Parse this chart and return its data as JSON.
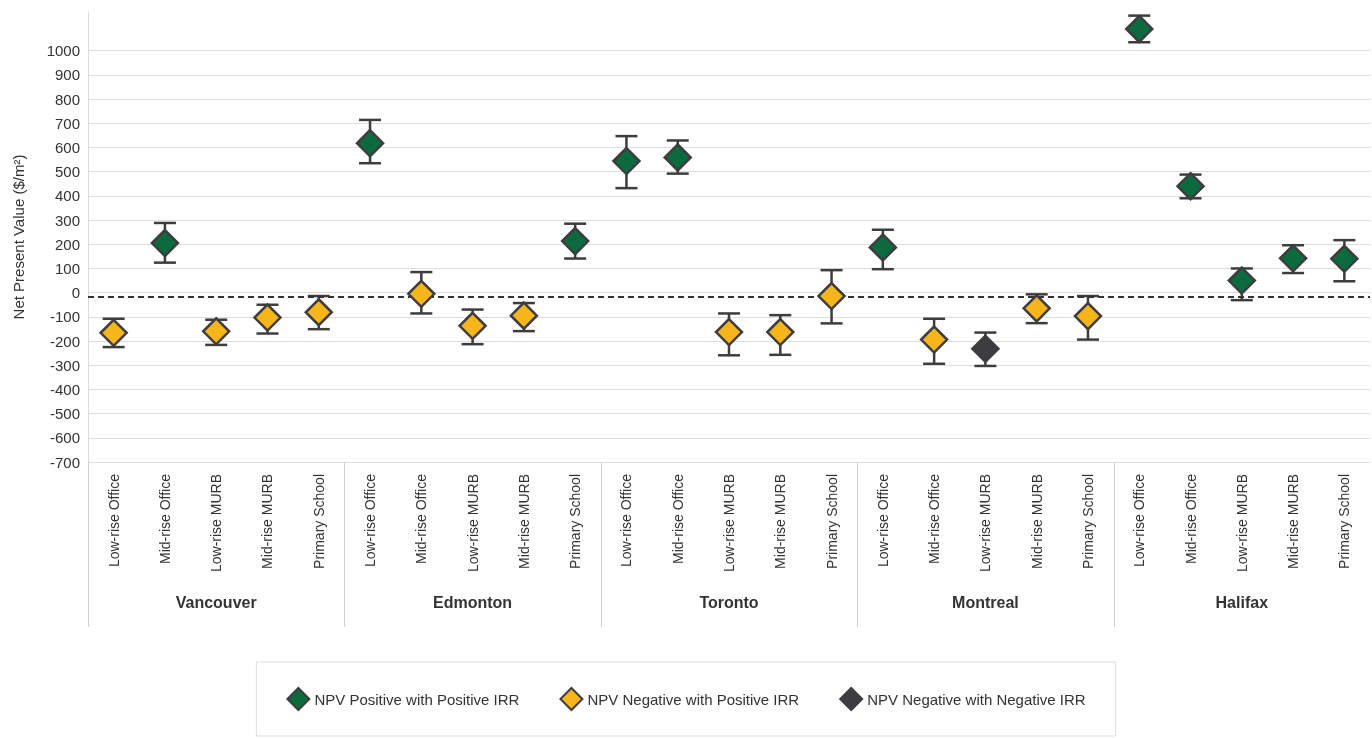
{
  "chart_data": {
    "type": "scatter",
    "ylabel": "Net Present Value ($/m²)",
    "categories": [
      "Low-rise Office",
      "Mid-rise Office",
      "Low-rise MURB",
      "Mid-rise MURB",
      "Primary School",
      "Low-rise Office",
      "Mid-rise Office",
      "Low-rise MURB",
      "Mid-rise MURB",
      "Primary School",
      "Low-rise Office",
      "Mid-rise Office",
      "Low-rise MURB",
      "Mid-rise MURB",
      "Primary School",
      "Low-rise Office",
      "Mid-rise Office",
      "Low-rise MURB",
      "Mid-rise MURB",
      "Primary School",
      "Low-rise Office",
      "Mid-rise Office",
      "Low-rise MURB",
      "Mid-rise MURB",
      "Primary School"
    ],
    "annotations": [
      "Vancouver",
      "Edmonton",
      "Toronto",
      "Montreal",
      "Halifax"
    ],
    "series": [
      {
        "name": "NPV Positive with Positive IRR",
        "color": "#0b6b3f",
        "values": [
          null,
          205,
          null,
          null,
          null,
          618,
          null,
          null,
          null,
          213,
          544,
          559,
          null,
          null,
          null,
          187,
          null,
          null,
          null,
          null,
          1090,
          440,
          50,
          142,
          140
        ],
        "errors": [
          null,
          [
            124,
            288
          ],
          null,
          null,
          null,
          [
            535,
            714
          ],
          null,
          null,
          null,
          [
            141,
            285
          ],
          [
            432,
            647
          ],
          [
            492,
            629
          ],
          null,
          null,
          null,
          [
            97,
            260
          ],
          null,
          null,
          null,
          null,
          [
            1035,
            1145
          ],
          [
            390,
            488
          ],
          [
            -31,
            100
          ],
          [
            81,
            196
          ],
          [
            47,
            217
          ]
        ]
      },
      {
        "name": "NPV Negative with Positive IRR",
        "color": "#f5b51b",
        "values": [
          -166,
          null,
          -160,
          -103,
          -81,
          null,
          -5,
          -137,
          -95,
          null,
          null,
          null,
          -163,
          -163,
          -14,
          null,
          -194,
          null,
          -65,
          -97,
          null,
          null,
          null,
          null,
          null
        ],
        "errors": [
          [
            -225,
            -108
          ],
          null,
          [
            -216,
            -112
          ],
          [
            -169,
            -50
          ],
          [
            -151,
            -14
          ],
          null,
          [
            -86,
            85
          ],
          [
            -213,
            -70
          ],
          [
            -159,
            -43
          ],
          null,
          null,
          null,
          [
            -259,
            -86
          ],
          [
            -257,
            -93
          ],
          [
            -127,
            93
          ],
          null,
          [
            -294,
            -108
          ],
          null,
          [
            -126,
            -7
          ],
          [
            -194,
            -14
          ],
          null,
          null,
          null,
          null,
          null
        ]
      },
      {
        "name": "NPV Negative with Negative IRR",
        "color": "#3d3d40",
        "values": [
          null,
          null,
          null,
          null,
          null,
          null,
          null,
          null,
          null,
          null,
          null,
          null,
          null,
          null,
          null,
          null,
          null,
          -232,
          null,
          null,
          null,
          null,
          null,
          null,
          null
        ],
        "errors": [
          null,
          null,
          null,
          null,
          null,
          null,
          null,
          null,
          null,
          null,
          null,
          null,
          null,
          null,
          null,
          null,
          null,
          [
            -303,
            -165
          ],
          null,
          null,
          null,
          null,
          null,
          null,
          null
        ]
      }
    ],
    "ylim": [
      -700,
      1160
    ],
    "yticks": [
      -700,
      -600,
      -500,
      -400,
      -300,
      -200,
      -100,
      0,
      100,
      200,
      300,
      400,
      500,
      600,
      700,
      800,
      900,
      1000
    ],
    "ref_lines": [
      {
        "axis": "y",
        "value": -15,
        "line_style": "dashed",
        "color": "#333333"
      }
    ],
    "grid": "y",
    "legend": "bottom",
    "marker": "diamond"
  }
}
